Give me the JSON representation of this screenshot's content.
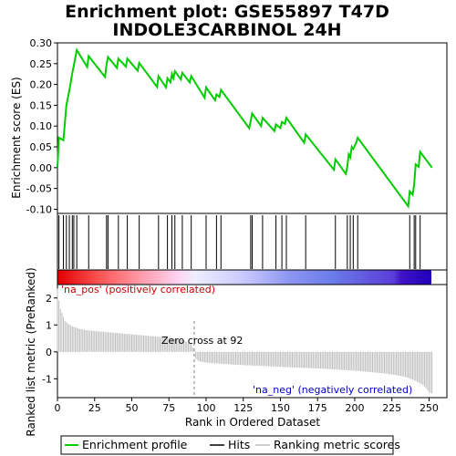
{
  "chart_data": {
    "type": "line",
    "title_line1": "Enrichment plot: GSE55897 T47D",
    "title_line2": "INDOLE3CARBINOL 24H",
    "ylabel_top": "Enrichment score (ES)",
    "ylabel_bottom": "Ranked list metric (PreRanked)",
    "xlabel": "Rank in Ordered Dataset",
    "xlim": [
      0,
      262
    ],
    "es_ylim": [
      -0.11,
      0.3
    ],
    "metric_ylim": [
      -1.7,
      2.5
    ],
    "x_ticks": [
      0,
      25,
      50,
      75,
      100,
      125,
      150,
      175,
      200,
      225,
      250
    ],
    "es_ticks": [
      "0.30",
      "0.25",
      "0.20",
      "0.15",
      "0.10",
      "0.05",
      "0.00",
      "-0.05",
      "-0.10"
    ],
    "es_tick_values": [
      0.3,
      0.25,
      0.2,
      0.15,
      0.1,
      0.05,
      0.0,
      -0.05,
      -0.1
    ],
    "metric_ticks": [
      "2",
      "1",
      "0",
      "-1"
    ],
    "metric_tick_values": [
      2,
      1,
      0,
      -1
    ],
    "n_genes": 253,
    "zero_cross_rank": 92,
    "zero_cross_label": "Zero cross at 92",
    "pos_label": "'na_pos' (positively correlated)",
    "neg_label": "'na_neg' (negatively correlated)",
    "hits": [
      1,
      4,
      6,
      8,
      10,
      11,
      13,
      21,
      33,
      34,
      41,
      47,
      55,
      68,
      74,
      77,
      79,
      84,
      90,
      100,
      107,
      110,
      130,
      131,
      138,
      147,
      151,
      154,
      167,
      187,
      195,
      197,
      199,
      202,
      237,
      240,
      241,
      244
    ],
    "es_curve": {
      "x": [
        0,
        1,
        4,
        6,
        8,
        10,
        11,
        13,
        20,
        21,
        32,
        33,
        34,
        40,
        41,
        46,
        47,
        54,
        55,
        67,
        68,
        73,
        74,
        76,
        77,
        78,
        79,
        83,
        84,
        89,
        90,
        99,
        100,
        106,
        107,
        109,
        110,
        129,
        130,
        131,
        137,
        138,
        146,
        147,
        150,
        151,
        153,
        154,
        166,
        167,
        186,
        187,
        194,
        195,
        196,
        197,
        198,
        199,
        201,
        202,
        236,
        237,
        239,
        240,
        241,
        243,
        244,
        252
      ],
      "y": [
        0.0,
        0.072,
        0.066,
        0.15,
        0.185,
        0.228,
        0.245,
        0.283,
        0.242,
        0.268,
        0.218,
        0.248,
        0.266,
        0.24,
        0.262,
        0.243,
        0.262,
        0.233,
        0.252,
        0.194,
        0.22,
        0.193,
        0.215,
        0.205,
        0.225,
        0.215,
        0.232,
        0.212,
        0.228,
        0.205,
        0.22,
        0.168,
        0.193,
        0.162,
        0.176,
        0.17,
        0.187,
        0.095,
        0.112,
        0.13,
        0.1,
        0.12,
        0.088,
        0.104,
        0.095,
        0.11,
        0.105,
        0.12,
        0.06,
        0.08,
        -0.005,
        0.02,
        -0.015,
        0.003,
        0.032,
        0.025,
        0.05,
        0.045,
        0.06,
        0.072,
        -0.093,
        -0.057,
        -0.065,
        -0.04,
        0.008,
        0.002,
        0.038,
        0.0
      ]
    },
    "metric_profile": {
      "rank": [
        0,
        1,
        2,
        3,
        4,
        5,
        7,
        10,
        15,
        20,
        30,
        40,
        50,
        60,
        70,
        80,
        85,
        90,
        92,
        93,
        95,
        100,
        120,
        140,
        160,
        180,
        200,
        210,
        220,
        230,
        235,
        240,
        245,
        248,
        250,
        252
      ],
      "value": [
        2.35,
        1.9,
        1.6,
        1.45,
        1.3,
        1.15,
        1.05,
        0.95,
        0.85,
        0.8,
        0.75,
        0.7,
        0.65,
        0.6,
        0.55,
        0.48,
        0.42,
        0.3,
        0.05,
        -0.25,
        -0.35,
        -0.4,
        -0.48,
        -0.53,
        -0.58,
        -0.63,
        -0.7,
        -0.75,
        -0.8,
        -0.88,
        -0.95,
        -1.05,
        -1.2,
        -1.35,
        -1.5,
        -1.55
      ]
    },
    "legend": [
      "Enrichment profile",
      "Hits",
      "Ranking metric scores"
    ],
    "colors": {
      "es_line": "#00cc00",
      "hits": "#000000",
      "metric_bars": "#bebebe",
      "pos_text": "#cc0000",
      "neg_text": "#0000cc",
      "zero_line": "#808080",
      "heat_pos": "#ff0000",
      "heat_neg": "#2200cc"
    }
  }
}
